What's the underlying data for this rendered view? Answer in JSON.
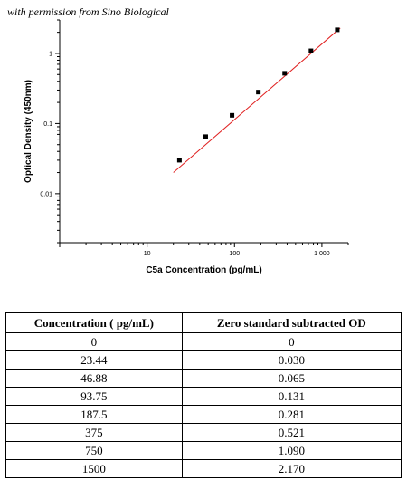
{
  "permission_note": "with permission from Sino Biological",
  "chart_data": {
    "type": "scatter",
    "xscale": "log",
    "yscale": "log",
    "xlabel": "C5a Concentration (pg/mL)",
    "ylabel": "Optical Density (450nm)",
    "xlim": [
      1,
      2000
    ],
    "ylim": [
      0.002,
      3
    ],
    "x_ticks": [
      10,
      100,
      1000
    ],
    "x_tick_labels": [
      "10",
      "100",
      "1 000"
    ],
    "y_ticks": [
      0.01,
      0.1,
      1
    ],
    "y_tick_labels": [
      "0.01",
      "0.1",
      "1"
    ],
    "fit_line_color": "#e02020",
    "point_color": "#000000",
    "points": [
      {
        "x": 23.44,
        "y": 0.03
      },
      {
        "x": 46.88,
        "y": 0.065
      },
      {
        "x": 93.75,
        "y": 0.131
      },
      {
        "x": 187.5,
        "y": 0.281
      },
      {
        "x": 375,
        "y": 0.521
      },
      {
        "x": 750,
        "y": 1.09
      },
      {
        "x": 1500,
        "y": 2.17
      }
    ],
    "fit_line": {
      "x_start": 20,
      "y_start": 0.02,
      "x_end": 1620,
      "y_end": 2.3
    }
  },
  "table": {
    "headers": [
      "Concentration ( pg/mL)",
      "Zero standard subtracted OD"
    ],
    "rows": [
      [
        "0",
        "0"
      ],
      [
        "23.44",
        "0.030"
      ],
      [
        "46.88",
        "0.065"
      ],
      [
        "93.75",
        "0.131"
      ],
      [
        "187.5",
        "0.281"
      ],
      [
        "375",
        "0.521"
      ],
      [
        "750",
        "1.090"
      ],
      [
        "1500",
        "2.170"
      ]
    ]
  }
}
